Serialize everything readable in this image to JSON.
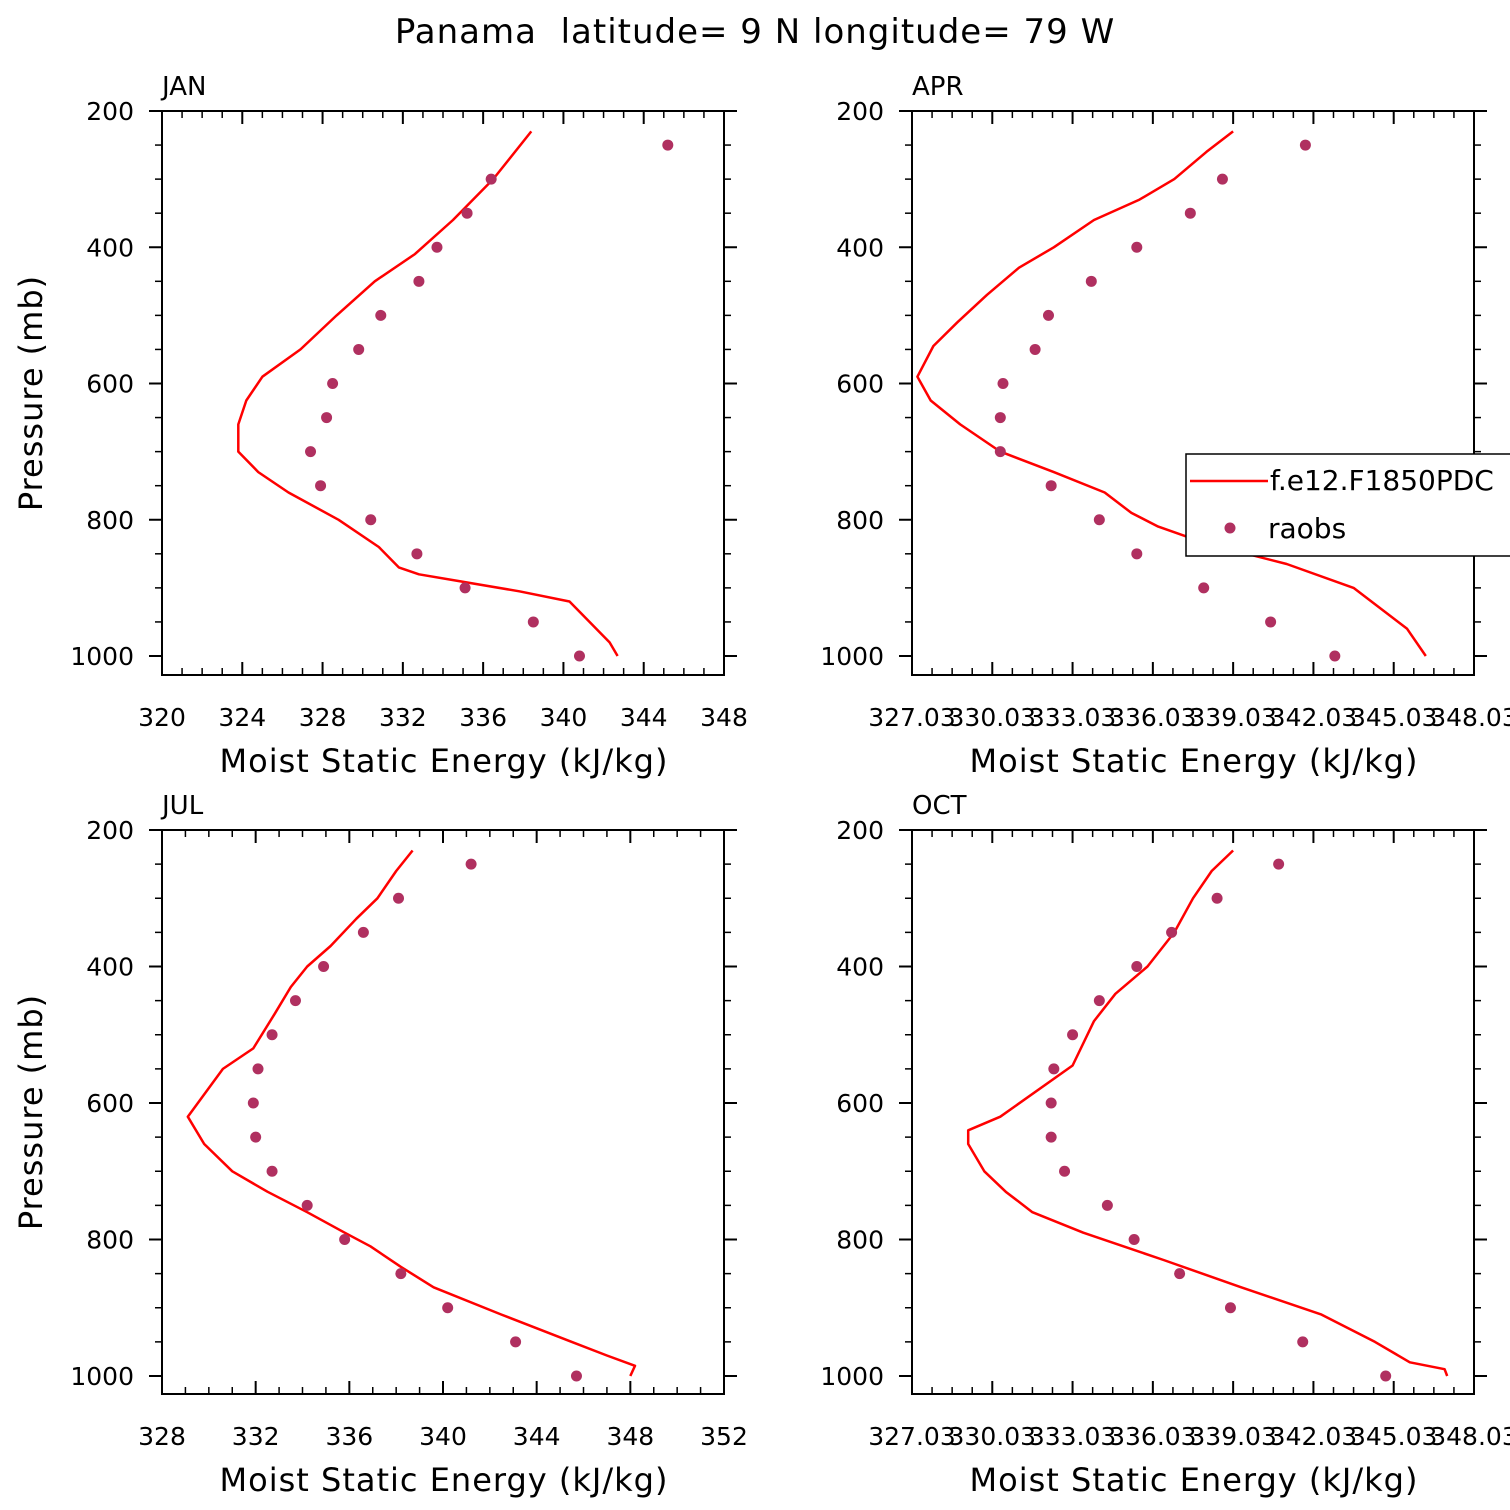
{
  "title": "Panama  latitude= 9 N longitude= 79 W",
  "chart_data": [
    {
      "type": "line",
      "panel": "JAN",
      "xlabel": "Moist Static Energy (kJ/kg)",
      "ylabel": "Pressure (mb)",
      "xlim": [
        320,
        348
      ],
      "ylim": [
        1000,
        200
      ],
      "xticks": [
        "320",
        "324",
        "328",
        "332",
        "336",
        "340",
        "344",
        "348"
      ],
      "yticks": [
        "200",
        "400",
        "600",
        "800",
        "1000"
      ],
      "series": [
        {
          "name": "f.e12.F1850PDC",
          "style": "line",
          "color": "#ff0000",
          "x": [
            338.4,
            336.5,
            334.5,
            332.6,
            330.6,
            328.7,
            326.9,
            325.0,
            324.2,
            323.8,
            323.8,
            324.8,
            326.3,
            328.8,
            330.8,
            331.8,
            332.8,
            334.8,
            337.8,
            340.3,
            341.3,
            342.3,
            342.7
          ],
          "y": [
            230,
            300,
            360,
            410,
            450,
            500,
            550,
            590,
            625,
            660,
            700,
            730,
            760,
            800,
            840,
            870,
            880,
            890,
            905,
            920,
            950,
            980,
            1000
          ]
        },
        {
          "name": "raobs",
          "style": "marker",
          "color": "#b03060",
          "x": [
            345.2,
            336.4,
            335.2,
            333.7,
            332.8,
            330.9,
            329.8,
            328.5,
            328.2,
            327.4,
            327.9,
            330.4,
            332.7,
            335.1,
            338.5,
            340.8
          ],
          "y": [
            250,
            300,
            350,
            400,
            450,
            500,
            550,
            600,
            650,
            700,
            750,
            800,
            850,
            900,
            950,
            1000
          ]
        }
      ]
    },
    {
      "type": "line",
      "panel": "APR",
      "xlabel": "Moist Static Energy (kJ/kg)",
      "ylabel": "",
      "xlim": [
        327,
        348
      ],
      "ylim": [
        1000,
        200
      ],
      "xticks": [
        "327.03",
        "330.03",
        "333.03",
        "336.03",
        "339.03",
        "342.03",
        "345.03",
        "348.03"
      ],
      "yticks": [
        "200",
        "400",
        "600",
        "800",
        "1000"
      ],
      "series": [
        {
          "name": "f.e12.F1850PDC",
          "style": "line",
          "color": "#ff0000",
          "x": [
            339.0,
            338.0,
            336.8,
            335.5,
            333.8,
            332.3,
            331.0,
            329.8,
            328.7,
            327.8,
            327.2,
            327.7,
            328.8,
            330.3,
            332.3,
            334.2,
            335.2,
            336.2,
            338.0,
            341.0,
            343.5,
            345.5,
            346.2
          ],
          "y": [
            230,
            260,
            300,
            330,
            360,
            400,
            430,
            470,
            510,
            545,
            590,
            625,
            660,
            700,
            730,
            760,
            790,
            810,
            835,
            865,
            900,
            960,
            1000
          ]
        },
        {
          "name": "raobs",
          "style": "marker",
          "color": "#b03060",
          "x": [
            341.7,
            338.6,
            337.4,
            335.4,
            333.7,
            332.1,
            331.6,
            330.4,
            330.3,
            330.3,
            332.2,
            334.0,
            335.4,
            337.9,
            340.4,
            342.8
          ],
          "y": [
            250,
            300,
            350,
            400,
            450,
            500,
            550,
            600,
            650,
            700,
            750,
            800,
            850,
            900,
            950,
            1000
          ]
        }
      ]
    },
    {
      "type": "line",
      "panel": "JUL",
      "xlabel": "Moist Static Energy (kJ/kg)",
      "ylabel": "Pressure (mb)",
      "xlim": [
        328,
        352
      ],
      "ylim": [
        1000,
        200
      ],
      "xticks": [
        "328",
        "332",
        "336",
        "340",
        "344",
        "348",
        "352"
      ],
      "yticks": [
        "200",
        "400",
        "600",
        "800",
        "1000"
      ],
      "series": [
        {
          "name": "f.e12.F1850PDC",
          "style": "line",
          "color": "#ff0000",
          "x": [
            338.7,
            338.0,
            337.2,
            336.3,
            335.2,
            334.2,
            333.5,
            332.8,
            331.9,
            330.6,
            329.1,
            329.8,
            331.0,
            332.5,
            334.2,
            335.8,
            336.9,
            338.2,
            339.6,
            342.5,
            345.5,
            347.0,
            348.2,
            348.0
          ],
          "y": [
            230,
            260,
            300,
            330,
            370,
            400,
            430,
            470,
            520,
            550,
            620,
            660,
            700,
            730,
            760,
            790,
            810,
            840,
            870,
            910,
            950,
            970,
            985,
            1000
          ]
        },
        {
          "name": "raobs",
          "style": "marker",
          "color": "#b03060",
          "x": [
            341.2,
            338.1,
            336.6,
            334.9,
            333.7,
            332.7,
            332.1,
            331.9,
            332.0,
            332.7,
            334.2,
            335.8,
            338.2,
            340.2,
            343.1,
            345.7
          ],
          "y": [
            250,
            300,
            350,
            400,
            450,
            500,
            550,
            600,
            650,
            700,
            750,
            800,
            850,
            900,
            950,
            1000
          ]
        }
      ]
    },
    {
      "type": "line",
      "panel": "OCT",
      "xlabel": "Moist Static Energy (kJ/kg)",
      "ylabel": "",
      "xlim": [
        327,
        348
      ],
      "ylim": [
        1000,
        200
      ],
      "xticks": [
        "327.03",
        "330.03",
        "333.03",
        "336.03",
        "339.03",
        "342.03",
        "345.03",
        "348.03"
      ],
      "yticks": [
        "200",
        "400",
        "600",
        "800",
        "1000"
      ],
      "series": [
        {
          "name": "f.e12.F1850PDC",
          "style": "line",
          "color": "#ff0000",
          "x": [
            339.0,
            338.2,
            337.5,
            336.8,
            335.8,
            334.6,
            333.8,
            333.0,
            330.3,
            329.1,
            329.1,
            329.7,
            330.5,
            331.5,
            333.4,
            336.4,
            339.3,
            342.3,
            344.3,
            345.6,
            346.9,
            347.0
          ],
          "y": [
            230,
            260,
            300,
            350,
            400,
            440,
            480,
            545,
            620,
            640,
            660,
            700,
            730,
            760,
            790,
            830,
            870,
            910,
            950,
            980,
            990,
            1000
          ]
        },
        {
          "name": "raobs",
          "style": "marker",
          "color": "#b03060",
          "x": [
            340.7,
            338.4,
            336.7,
            335.4,
            334.0,
            333.0,
            332.3,
            332.2,
            332.2,
            332.7,
            334.3,
            335.3,
            337.0,
            338.9,
            341.6,
            344.7
          ],
          "y": [
            250,
            300,
            350,
            400,
            450,
            500,
            550,
            600,
            650,
            700,
            750,
            800,
            850,
            900,
            950,
            1000
          ]
        }
      ]
    }
  ],
  "legend": {
    "panel": "APR",
    "items": [
      {
        "label": "f.e12.F1850PDC",
        "style": "line",
        "color": "#ff0000"
      },
      {
        "label": "raobs",
        "style": "marker",
        "color": "#b03060"
      }
    ]
  }
}
